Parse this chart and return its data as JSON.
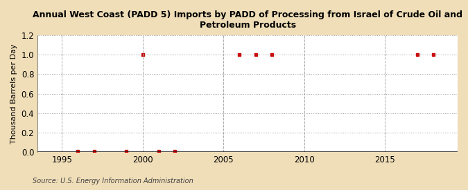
{
  "title": "Annual West Coast (PADD 5) Imports by PADD of Processing from Israel of Crude Oil and\nPetroleum Products",
  "ylabel": "Thousand Barrels per Day",
  "source": "Source: U.S. Energy Information Administration",
  "background_color": "#f0deb8",
  "plot_bg_color": "#ffffff",
  "xlim": [
    1993.5,
    2019.5
  ],
  "ylim": [
    0,
    1.2
  ],
  "yticks": [
    0.0,
    0.2,
    0.4,
    0.6,
    0.8,
    1.0,
    1.2
  ],
  "xticks": [
    1995,
    2000,
    2005,
    2010,
    2015
  ],
  "data_points": [
    [
      1996,
      0.01
    ],
    [
      1997,
      0.01
    ],
    [
      1999,
      0.01
    ],
    [
      2000,
      1.0
    ],
    [
      2001,
      0.01
    ],
    [
      2002,
      0.01
    ],
    [
      2006,
      1.0
    ],
    [
      2007,
      1.0
    ],
    [
      2008,
      1.0
    ],
    [
      2017,
      1.0
    ],
    [
      2018,
      1.0
    ]
  ],
  "marker_color": "#cc0000",
  "marker_style": "s",
  "marker_size": 3.5,
  "grid_color": "#999999",
  "grid_linestyle": ":",
  "vgrid_color": "#aaaaaa",
  "vgrid_linestyle": "--",
  "axis_line_color": "#222222",
  "tick_label_fontsize": 8.5,
  "title_fontsize": 9,
  "ylabel_fontsize": 8,
  "source_fontsize": 7
}
